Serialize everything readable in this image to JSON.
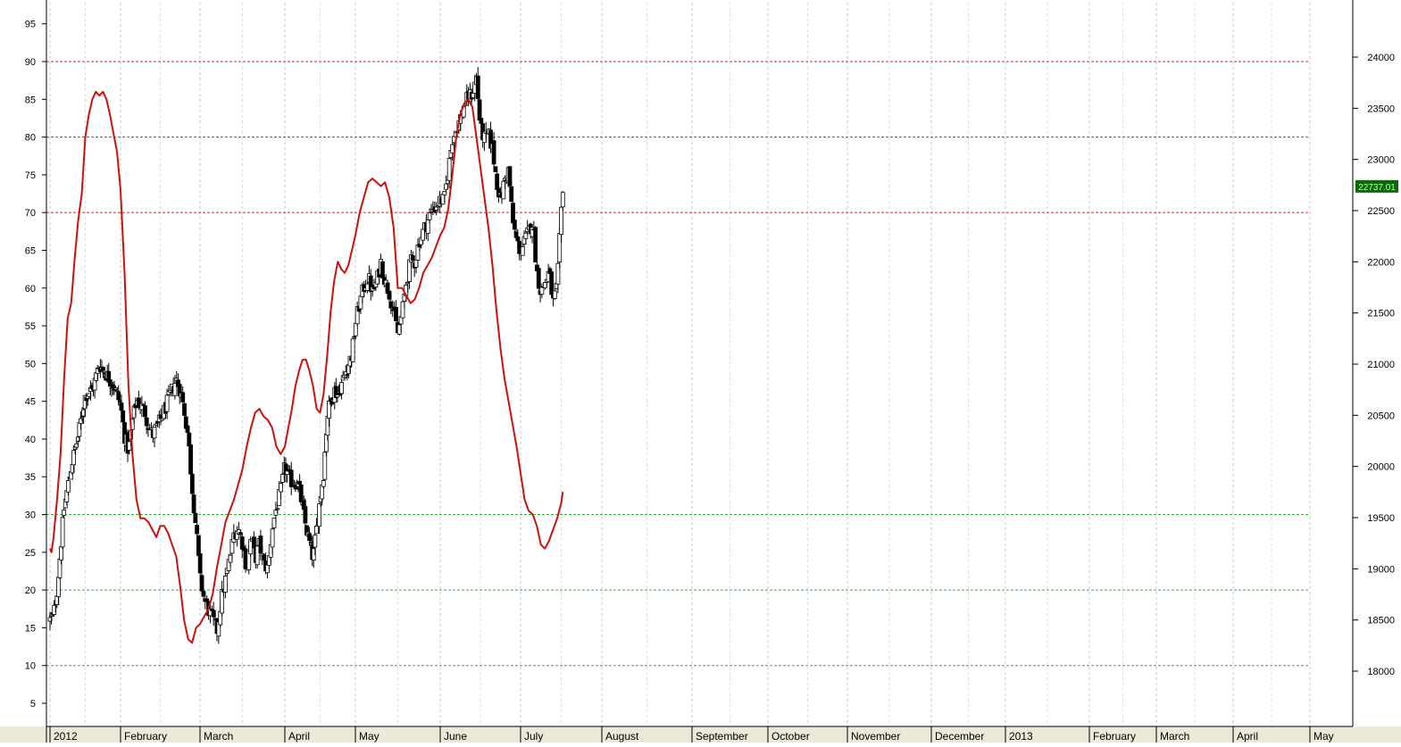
{
  "chart_data": {
    "type": "candlestick",
    "left_axis": {
      "ticks": [
        5,
        10,
        15,
        20,
        25,
        30,
        35,
        40,
        45,
        50,
        55,
        60,
        65,
        70,
        75,
        80,
        85,
        90,
        95
      ],
      "range": [
        3,
        98.4
      ]
    },
    "right_axis": {
      "ticks": [
        18000,
        18500,
        19000,
        19500,
        20000,
        20500,
        21000,
        21500,
        22000,
        22500,
        23000,
        23500,
        24000
      ],
      "range": [
        17460,
        24600
      ]
    },
    "x_labels": [
      "2012",
      "February",
      "March",
      "April",
      "May",
      "June",
      "July",
      "August",
      "September",
      "October",
      "November",
      "December",
      "2013",
      "February",
      "March",
      "April",
      "May"
    ],
    "reference_lines": [
      {
        "value": 90,
        "color": "#c03030"
      },
      {
        "value": 80,
        "color": "#c03030"
      },
      {
        "value": 70,
        "color": "#c03030"
      },
      {
        "value": 30,
        "color": "#30b030"
      },
      {
        "value": 20,
        "color": "#30b030"
      },
      {
        "value": 10,
        "color": "#30b030"
      }
    ],
    "last_price_label": "22737.01",
    "last_price_value": 22737.01,
    "colors": {
      "oscillator": "#cc1111",
      "candles": "#000000",
      "price_tag_bg": "#0a6a0a",
      "price_tag_text": "#b6ff9c"
    },
    "oscillator": {
      "name": "",
      "keypoints": [
        [
          0,
          25.5
        ],
        [
          0.02,
          25
        ],
        [
          0.05,
          27
        ],
        [
          0.1,
          32
        ],
        [
          0.15,
          38
        ],
        [
          0.2,
          48
        ],
        [
          0.25,
          56
        ],
        [
          0.3,
          58
        ],
        [
          0.35,
          64
        ],
        [
          0.4,
          69
        ],
        [
          0.45,
          72.5
        ],
        [
          0.5,
          80
        ],
        [
          0.55,
          83
        ],
        [
          0.6,
          85
        ],
        [
          0.65,
          86
        ],
        [
          0.7,
          85.5
        ],
        [
          0.75,
          86
        ],
        [
          0.8,
          85
        ],
        [
          0.85,
          83
        ],
        [
          0.9,
          80.5
        ],
        [
          0.95,
          78
        ],
        [
          1,
          73
        ],
        [
          1.05,
          62
        ],
        [
          1.1,
          47
        ],
        [
          1.15,
          38
        ],
        [
          1.2,
          32
        ],
        [
          1.25,
          29.5
        ],
        [
          1.3,
          29.5
        ],
        [
          1.35,
          29
        ],
        [
          1.4,
          28
        ],
        [
          1.45,
          27
        ],
        [
          1.5,
          28.5
        ],
        [
          1.55,
          28.5
        ],
        [
          1.6,
          27.5
        ],
        [
          1.65,
          26
        ],
        [
          1.7,
          24.5
        ],
        [
          1.75,
          20.5
        ],
        [
          1.8,
          16
        ],
        [
          1.85,
          13.5
        ],
        [
          1.9,
          13
        ],
        [
          1.95,
          15
        ],
        [
          2,
          15.5
        ],
        [
          2.05,
          16.5
        ],
        [
          2.1,
          17.5
        ],
        [
          2.15,
          19.5
        ],
        [
          2.2,
          23
        ],
        [
          2.25,
          26
        ],
        [
          2.3,
          29
        ],
        [
          2.35,
          30.5
        ],
        [
          2.4,
          32
        ],
        [
          2.45,
          34
        ],
        [
          2.5,
          36
        ],
        [
          2.55,
          39
        ],
        [
          2.6,
          41.5
        ],
        [
          2.65,
          43.5
        ],
        [
          2.7,
          44
        ],
        [
          2.75,
          43
        ],
        [
          2.8,
          42.5
        ],
        [
          2.85,
          41.5
        ],
        [
          2.9,
          39
        ],
        [
          2.95,
          38
        ],
        [
          3,
          39
        ],
        [
          3.05,
          41.5
        ],
        [
          3.1,
          44
        ],
        [
          3.15,
          47
        ],
        [
          3.2,
          49
        ],
        [
          3.25,
          50.5
        ],
        [
          3.3,
          50.5
        ],
        [
          3.35,
          49
        ],
        [
          3.4,
          47
        ],
        [
          3.45,
          44
        ],
        [
          3.5,
          43.5
        ],
        [
          3.55,
          46
        ],
        [
          3.6,
          51
        ],
        [
          3.65,
          57
        ],
        [
          3.7,
          61
        ],
        [
          3.75,
          63.5
        ],
        [
          3.8,
          62.5
        ],
        [
          3.85,
          62
        ],
        [
          3.9,
          63
        ],
        [
          3.95,
          65
        ],
        [
          4,
          67
        ],
        [
          4.05,
          70
        ],
        [
          4.1,
          72
        ],
        [
          4.15,
          74
        ],
        [
          4.2,
          74.5
        ],
        [
          4.25,
          74
        ],
        [
          4.3,
          73.5
        ],
        [
          4.35,
          74
        ],
        [
          4.4,
          72
        ],
        [
          4.45,
          68
        ],
        [
          4.5,
          60
        ],
        [
          4.55,
          60
        ],
        [
          4.6,
          59
        ],
        [
          4.65,
          58
        ],
        [
          4.7,
          58.5
        ],
        [
          4.75,
          60
        ],
        [
          4.8,
          62
        ],
        [
          4.85,
          63
        ],
        [
          4.9,
          64
        ],
        [
          4.95,
          65.5
        ],
        [
          5,
          67
        ],
        [
          5.05,
          68
        ],
        [
          5.1,
          70.5
        ],
        [
          5.15,
          75
        ],
        [
          5.2,
          80
        ],
        [
          5.25,
          83
        ],
        [
          5.3,
          84.5
        ],
        [
          5.35,
          85
        ],
        [
          5.4,
          84
        ],
        [
          5.45,
          80
        ],
        [
          5.5,
          76
        ],
        [
          5.55,
          72
        ],
        [
          5.6,
          68
        ],
        [
          5.65,
          63
        ],
        [
          5.7,
          57
        ],
        [
          5.75,
          52
        ],
        [
          5.8,
          48
        ],
        [
          5.85,
          45
        ],
        [
          5.9,
          42
        ],
        [
          5.95,
          39
        ],
        [
          6,
          35.5
        ],
        [
          6.05,
          32
        ],
        [
          6.1,
          30.5
        ],
        [
          6.15,
          30
        ],
        [
          6.2,
          28.5
        ],
        [
          6.25,
          26
        ],
        [
          6.3,
          25.5
        ],
        [
          6.35,
          26.5
        ],
        [
          6.4,
          28
        ],
        [
          6.45,
          29.5
        ],
        [
          6.5,
          31.5
        ],
        [
          6.52,
          33
        ]
      ]
    },
    "price_trend": [
      [
        0,
        18500
      ],
      [
        0.05,
        18550
      ],
      [
        0.1,
        18800
      ],
      [
        0.15,
        19200
      ],
      [
        0.2,
        19600
      ],
      [
        0.3,
        20000
      ],
      [
        0.4,
        20300
      ],
      [
        0.5,
        20700
      ],
      [
        0.6,
        20750
      ],
      [
        0.7,
        21000
      ],
      [
        0.8,
        20900
      ],
      [
        0.9,
        20800
      ],
      [
        1,
        20600
      ],
      [
        1.05,
        20300
      ],
      [
        1.1,
        20150
      ],
      [
        1.15,
        20450
      ],
      [
        1.2,
        20650
      ],
      [
        1.3,
        20550
      ],
      [
        1.35,
        20400
      ],
      [
        1.4,
        20300
      ],
      [
        1.5,
        20450
      ],
      [
        1.6,
        20650
      ],
      [
        1.7,
        20850
      ],
      [
        1.75,
        20750
      ],
      [
        1.8,
        20550
      ],
      [
        1.85,
        20300
      ],
      [
        1.9,
        19800
      ],
      [
        1.95,
        19400
      ],
      [
        2,
        18900
      ],
      [
        2.05,
        18700
      ],
      [
        2.1,
        18600
      ],
      [
        2.15,
        18500
      ],
      [
        2.2,
        18400
      ],
      [
        2.25,
        18700
      ],
      [
        2.3,
        18900
      ],
      [
        2.35,
        19100
      ],
      [
        2.4,
        19350
      ],
      [
        2.45,
        19400
      ],
      [
        2.5,
        19250
      ],
      [
        2.55,
        19000
      ],
      [
        2.6,
        19300
      ],
      [
        2.65,
        19100
      ],
      [
        2.7,
        19250
      ],
      [
        2.75,
        19050
      ],
      [
        2.8,
        19000
      ],
      [
        2.85,
        19400
      ],
      [
        2.9,
        19600
      ],
      [
        2.95,
        19750
      ],
      [
        3,
        20000
      ],
      [
        3.05,
        19900
      ],
      [
        3.1,
        19850
      ],
      [
        3.15,
        19850
      ],
      [
        3.2,
        19800
      ],
      [
        3.25,
        19600
      ],
      [
        3.3,
        19400
      ],
      [
        3.35,
        19250
      ],
      [
        3.4,
        19100
      ],
      [
        3.45,
        19400
      ],
      [
        3.5,
        19700
      ],
      [
        3.55,
        19950
      ],
      [
        3.6,
        20500
      ],
      [
        3.65,
        20650
      ],
      [
        3.7,
        20750
      ],
      [
        3.75,
        20700
      ],
      [
        3.8,
        20800
      ],
      [
        3.85,
        20900
      ],
      [
        3.9,
        21000
      ],
      [
        3.95,
        21100
      ],
      [
        4,
        21400
      ],
      [
        4.05,
        21600
      ],
      [
        4.1,
        21750
      ],
      [
        4.15,
        21850
      ],
      [
        4.2,
        21700
      ],
      [
        4.25,
        21800
      ],
      [
        4.3,
        22000
      ],
      [
        4.35,
        21800
      ],
      [
        4.4,
        21700
      ],
      [
        4.45,
        21500
      ],
      [
        4.5,
        21300
      ],
      [
        4.55,
        21500
      ],
      [
        4.6,
        21800
      ],
      [
        4.65,
        22000
      ],
      [
        4.7,
        22000
      ],
      [
        4.75,
        22200
      ],
      [
        4.8,
        22300
      ],
      [
        4.85,
        22400
      ],
      [
        4.9,
        22500
      ],
      [
        4.95,
        22550
      ],
      [
        5,
        22600
      ],
      [
        5.05,
        22600
      ],
      [
        5.1,
        22900
      ],
      [
        5.15,
        23200
      ],
      [
        5.2,
        23300
      ],
      [
        5.25,
        23400
      ],
      [
        5.3,
        23550
      ],
      [
        5.35,
        23600
      ],
      [
        5.4,
        23650
      ],
      [
        5.45,
        23800
      ],
      [
        5.5,
        23300
      ],
      [
        5.55,
        23200
      ],
      [
        5.6,
        23250
      ],
      [
        5.65,
        23100
      ],
      [
        5.7,
        22800
      ],
      [
        5.75,
        22600
      ],
      [
        5.8,
        22800
      ],
      [
        5.85,
        22900
      ],
      [
        5.9,
        22400
      ],
      [
        5.95,
        22200
      ],
      [
        6,
        22100
      ],
      [
        6.05,
        22200
      ],
      [
        6.1,
        22300
      ],
      [
        6.15,
        22400
      ],
      [
        6.2,
        21900
      ],
      [
        6.25,
        21700
      ],
      [
        6.3,
        21800
      ],
      [
        6.35,
        21900
      ],
      [
        6.4,
        21600
      ],
      [
        6.45,
        21750
      ],
      [
        6.5,
        22500
      ],
      [
        6.52,
        22737
      ]
    ]
  }
}
